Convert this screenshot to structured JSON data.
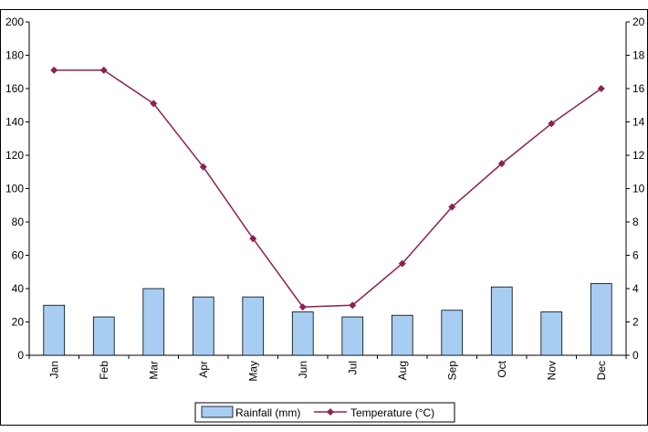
{
  "chart_data": {
    "type": "bar+line",
    "categories": [
      "Jan",
      "Feb",
      "Mar",
      "Apr",
      "May",
      "Jun",
      "Jul",
      "Aug",
      "Sep",
      "Oct",
      "Nov",
      "Dec"
    ],
    "series": [
      {
        "name": "Rainfall (mm)",
        "type": "bar",
        "axis": "left",
        "color": "#a7cdf2",
        "values": [
          30,
          23,
          40,
          35,
          35,
          26,
          23,
          24,
          27,
          41,
          26,
          43
        ]
      },
      {
        "name": "Temperature (°C)",
        "type": "line",
        "axis": "right",
        "color": "#8b2252",
        "marker": "diamond",
        "values": [
          17.1,
          17.1,
          15.1,
          11.3,
          7.0,
          2.9,
          3.0,
          5.5,
          8.9,
          11.5,
          13.9,
          16.0
        ]
      }
    ],
    "y_left": {
      "min": 0,
      "max": 200,
      "ticks": [
        0,
        20,
        40,
        60,
        80,
        100,
        120,
        140,
        160,
        180,
        200
      ]
    },
    "y_right": {
      "min": 0,
      "max": 20,
      "ticks": [
        0,
        2,
        4,
        6,
        8,
        10,
        12,
        14,
        16,
        18,
        20
      ]
    },
    "grid": false,
    "legend": "bottom-center",
    "title": "",
    "xlabel": "",
    "ylabel": ""
  }
}
